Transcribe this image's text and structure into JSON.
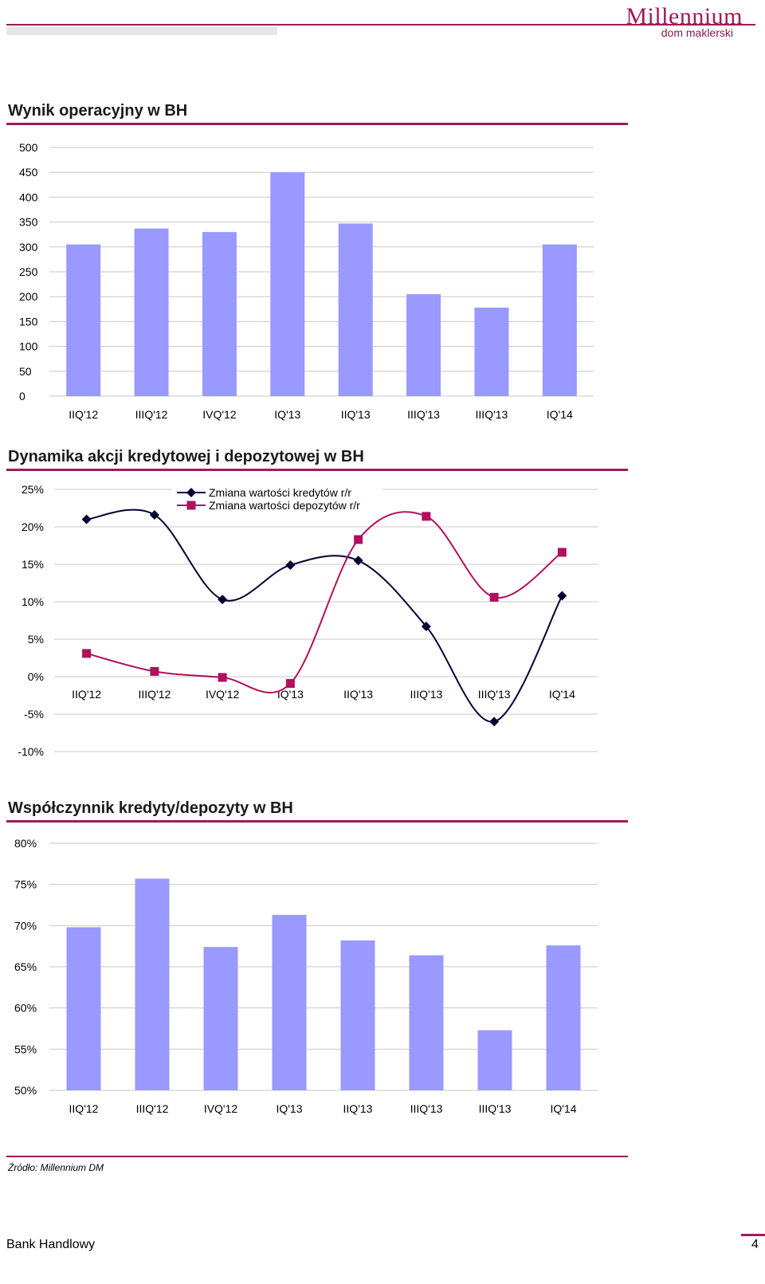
{
  "header": {
    "logo_main": "Millennium",
    "logo_sub": "dom maklerski",
    "brand_color": "#a01b58"
  },
  "footer": {
    "source": "Źródło: Millennium DM",
    "company": "Bank Handlowy",
    "page_number": "4"
  },
  "chart_data": [
    {
      "type": "bar",
      "title": "Wynik operacyjny w BH",
      "categories": [
        "IIQ'12",
        "IIIQ'12",
        "IVQ'12",
        "IQ'13",
        "IIQ'13",
        "IIIQ'13",
        "IIIQ'13",
        "IQ'14"
      ],
      "values": [
        305,
        337,
        330,
        450,
        347,
        205,
        178,
        305
      ],
      "ylim": [
        0,
        500
      ],
      "yticks": [
        "0",
        "50",
        "100",
        "150",
        "200",
        "250",
        "300",
        "350",
        "400",
        "450",
        "500"
      ],
      "bar_color": "#9999ff",
      "grid": true
    },
    {
      "type": "line",
      "title": "Dynamika akcji kredytowej i depozytowej w BH",
      "categories": [
        "IIQ'12",
        "IIIQ'12",
        "IVQ'12",
        "IQ'13",
        "IIQ'13",
        "IIIQ'13",
        "IIIQ'13",
        "IQ'14"
      ],
      "series": [
        {
          "name": "Zmiana wartości kredytów r/r",
          "values": [
            21.0,
            21.6,
            10.3,
            14.9,
            15.5,
            6.7,
            -6.0,
            10.8
          ],
          "color": "#000033",
          "marker": "diamond"
        },
        {
          "name": "Zmiana wartości depozytów r/r",
          "values": [
            3.1,
            0.7,
            -0.1,
            -0.9,
            18.3,
            21.4,
            10.6,
            16.6
          ],
          "color": "#b0105e",
          "marker": "square"
        }
      ],
      "ylim": [
        -10,
        25
      ],
      "yticks": [
        "-10%",
        "-5%",
        "0%",
        "5%",
        "10%",
        "15%",
        "20%",
        "25%"
      ],
      "legend": "top-center",
      "grid": true
    },
    {
      "type": "bar",
      "title": "Współczynnik kredyty/depozyty w BH",
      "categories": [
        "IIQ'12",
        "IIIQ'12",
        "IVQ'12",
        "IQ'13",
        "IIQ'13",
        "IIIQ'13",
        "IIIQ'13",
        "IQ'14"
      ],
      "values": [
        69.8,
        75.7,
        67.4,
        71.3,
        68.2,
        66.4,
        57.3,
        67.6
      ],
      "ylim": [
        50,
        80
      ],
      "yticks": [
        "50%",
        "55%",
        "60%",
        "65%",
        "70%",
        "75%",
        "80%"
      ],
      "bar_color": "#9999ff",
      "grid": true
    }
  ]
}
